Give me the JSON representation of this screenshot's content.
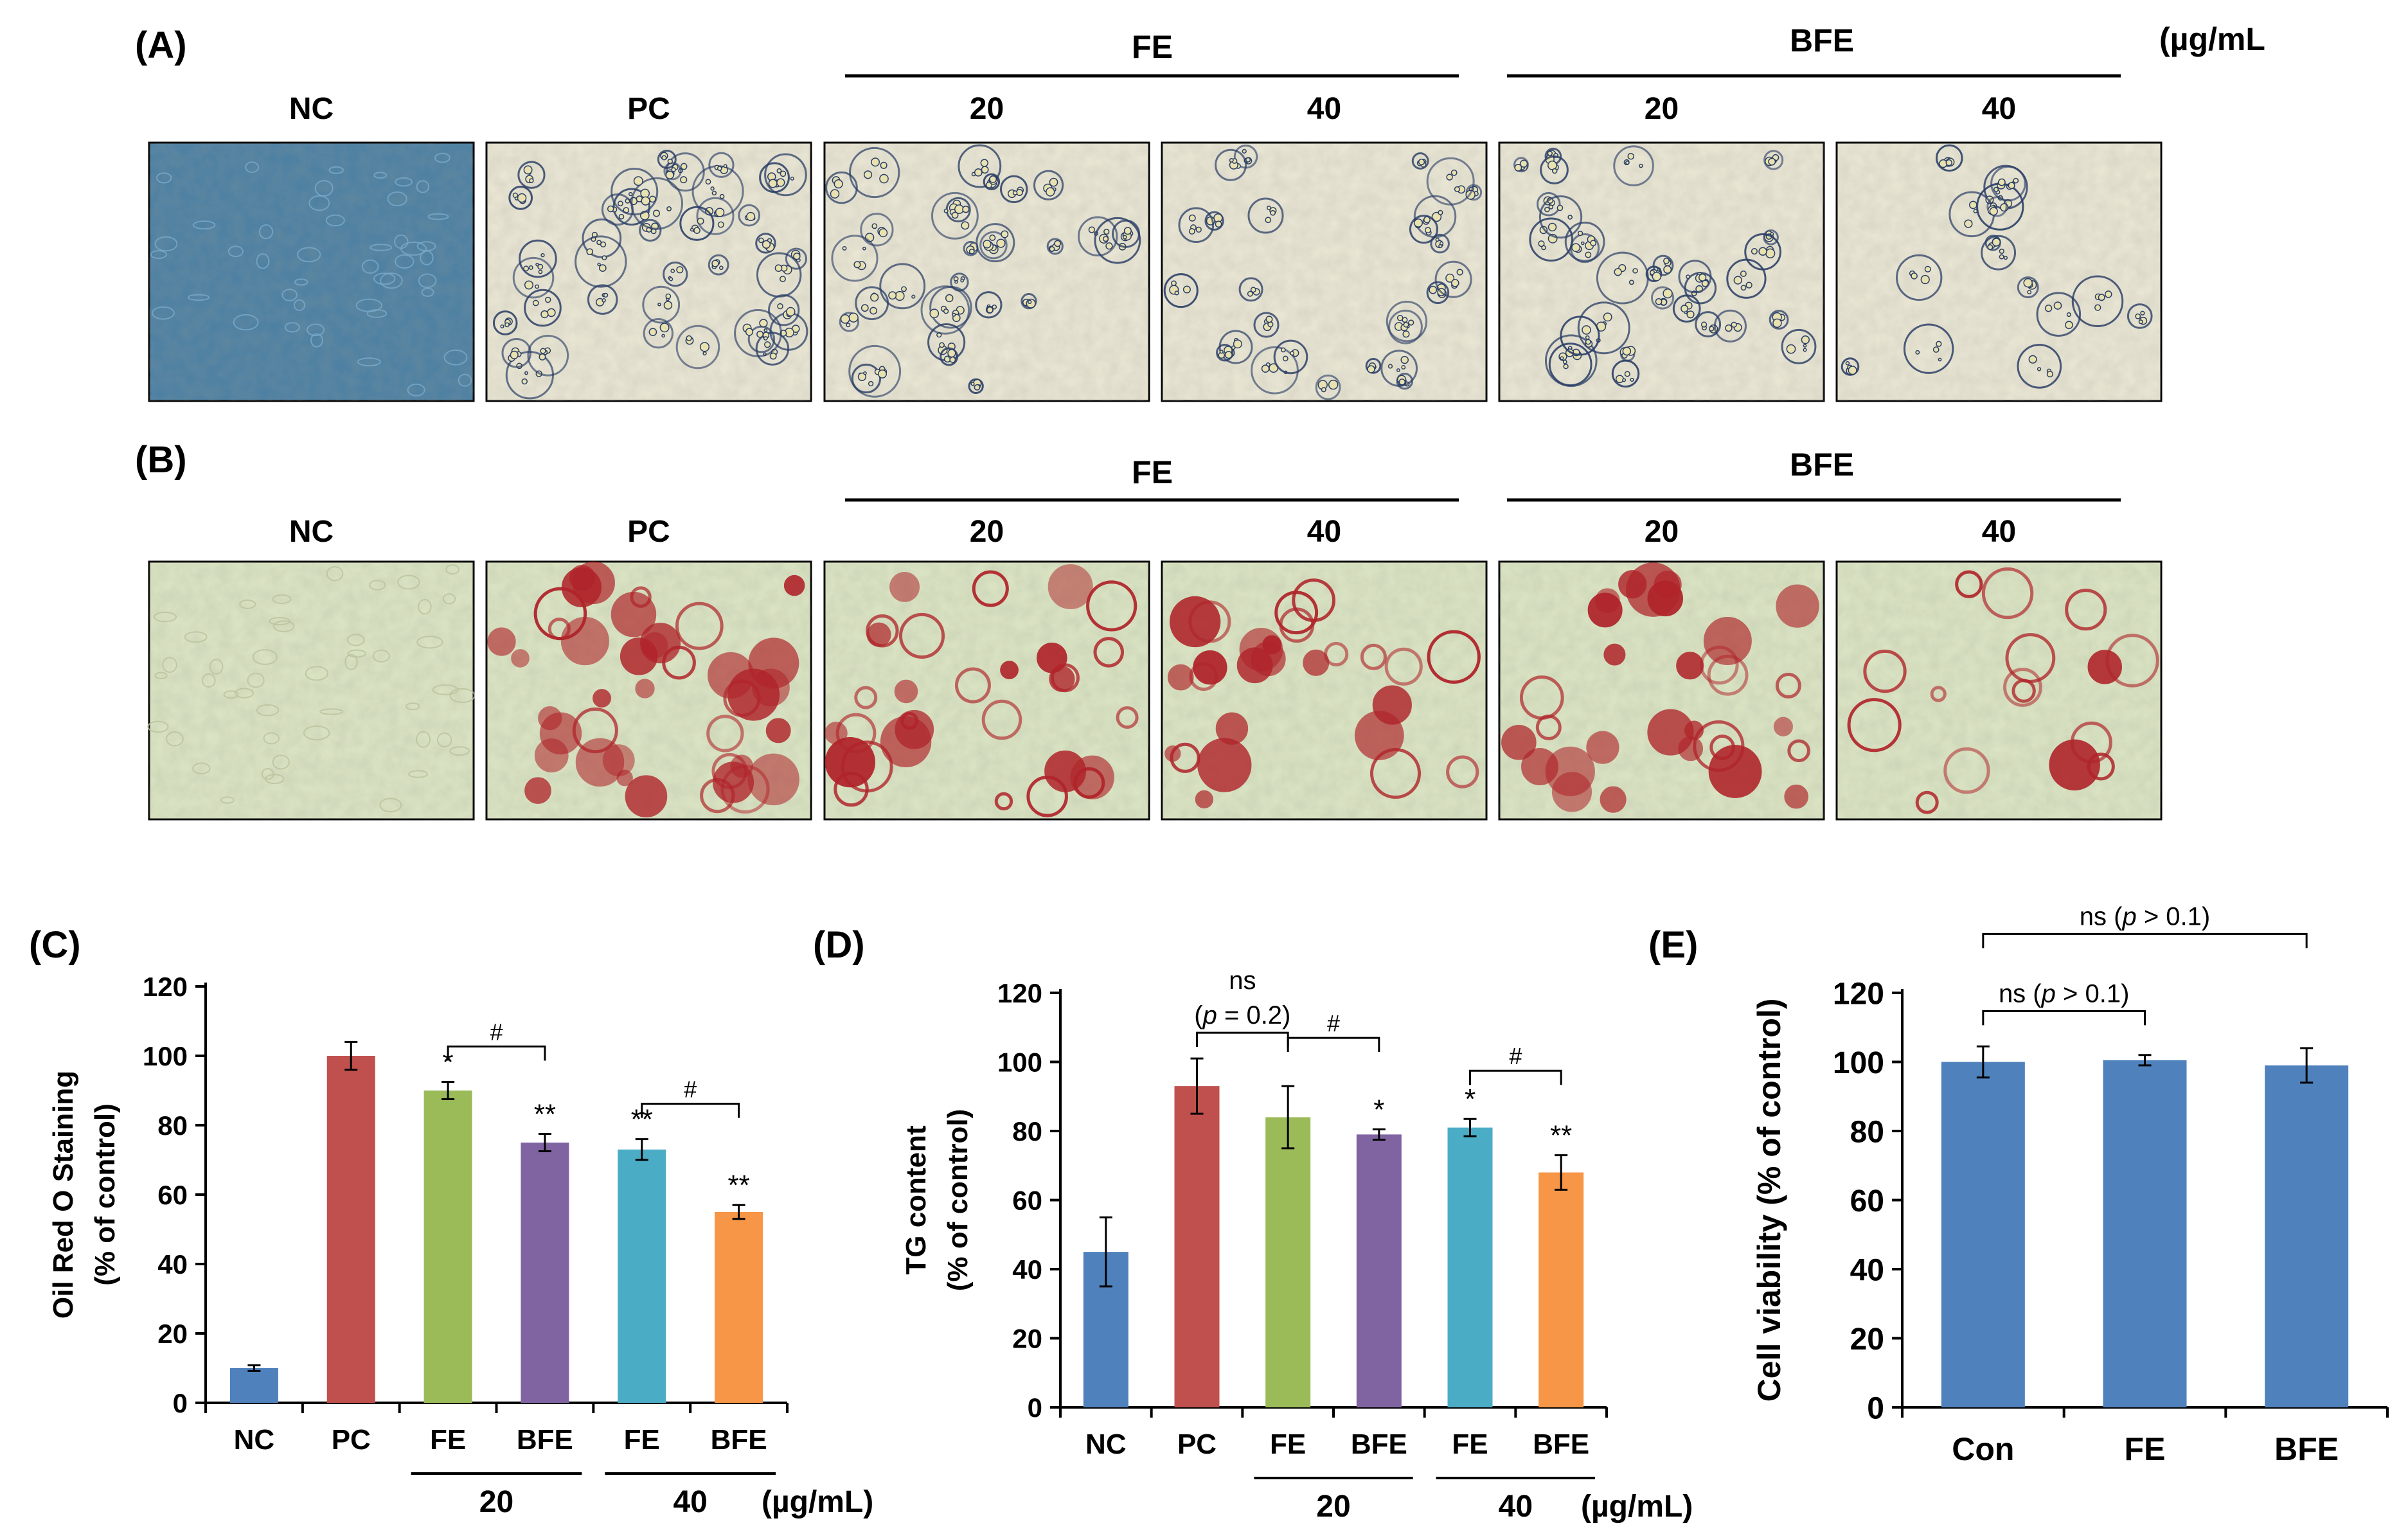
{
  "colors": {
    "NC": "#4f81bd",
    "PC": "#c0504d",
    "FE20": "#9bbb59",
    "BFE20": "#8064a2",
    "FE40": "#4bacc6",
    "BFE40": "#f79646",
    "E": "#4f81bd",
    "bright_bg": "#ece8d6",
    "stain_bg": "#dce6c4",
    "nc_phase": "#4a7fa3",
    "droplet": "#2a3e66",
    "stain": "#b0242a"
  },
  "panelA": {
    "letter": "(A)",
    "fe_label": "FE",
    "bfe_label": "BFE",
    "unit": "(µg/mL",
    "headers": [
      "NC",
      "PC",
      "20",
      "40",
      "20",
      "40"
    ]
  },
  "panelB": {
    "letter": "(B)",
    "fe_label": "FE",
    "bfe_label": "BFE",
    "headers": [
      "NC",
      "PC",
      "20",
      "40",
      "20",
      "40"
    ]
  },
  "chart_data": [
    {
      "panel": "(C)",
      "type": "bar",
      "categories": [
        "NC",
        "PC",
        "FE",
        "BFE",
        "FE",
        "BFE"
      ],
      "values": [
        10,
        100,
        90,
        75,
        73,
        55
      ],
      "errors": [
        0.8,
        4,
        2.5,
        2.5,
        3,
        2
      ],
      "sig": [
        "",
        "",
        "*",
        "**",
        "**",
        "**"
      ],
      "ylabel": [
        "Oil Red O Staining",
        "(% of control)"
      ],
      "ylim": [
        0,
        120
      ],
      "yticks": [
        0,
        20,
        40,
        60,
        80,
        100,
        120
      ],
      "groups": [
        "20",
        "40"
      ],
      "unit": "(µg/mL)",
      "brackets": [
        {
          "from": 2,
          "to": 3,
          "label": "#"
        },
        {
          "from": 4,
          "to": 5,
          "label": "#"
        }
      ]
    },
    {
      "panel": "(D)",
      "type": "bar",
      "categories": [
        "NC",
        "PC",
        "FE",
        "BFE",
        "FE",
        "BFE"
      ],
      "values": [
        45,
        93,
        84,
        79,
        81,
        68
      ],
      "errors": [
        10,
        8,
        9,
        1.5,
        2.5,
        5
      ],
      "sig": [
        "",
        "",
        "",
        "*",
        "*",
        "**"
      ],
      "ylabel": [
        "TG  content",
        "(% of control)"
      ],
      "ylim": [
        0,
        120
      ],
      "yticks": [
        0,
        20,
        40,
        60,
        80,
        100,
        120
      ],
      "groups": [
        "20",
        "40"
      ],
      "unit": "(µg/mL)",
      "brackets": [
        {
          "from": 1,
          "to": 2,
          "label": "ns"
        },
        {
          "from": 2,
          "to": 3,
          "label": "#"
        },
        {
          "from": 4,
          "to": 5,
          "label": "#"
        }
      ],
      "ns_line1": "ns",
      "ns_p_open": "(",
      "ns_p": "p",
      "ns_rest": " = 0.2)"
    },
    {
      "panel": "(E)",
      "type": "bar",
      "categories": [
        "Con",
        "FE",
        "BFE"
      ],
      "values": [
        100,
        100.5,
        99
      ],
      "errors": [
        4.5,
        1.5,
        5
      ],
      "ylabel": [
        "Cell viability (% of control)"
      ],
      "ylim": [
        0,
        120
      ],
      "yticks": [
        0,
        20,
        40,
        60,
        80,
        100,
        120
      ],
      "brackets": [
        {
          "from": 0,
          "to": 1,
          "label": "ns (p > 0.1)"
        },
        {
          "from": 0,
          "to": 2,
          "label": "ns (p > 0.1)"
        }
      ],
      "ns_prefix": "ns (",
      "ns_p": "p",
      "ns_suffix": " > 0.1)"
    }
  ]
}
